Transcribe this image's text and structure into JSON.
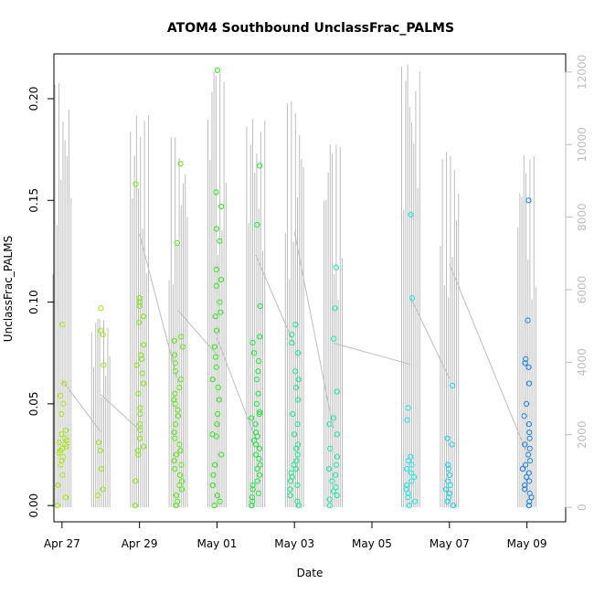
{
  "chart_data": {
    "type": "scatter",
    "title": "ATOM4 Southbound UnclassFrac_PALMS",
    "xlabel": "Date",
    "ylabel": "UnclassFrac_PALMS",
    "x_range_days": [
      "2018-04-26T19:00",
      "2018-05-10T00:00"
    ],
    "x_ticks": [
      {
        "date": "2018-04-27",
        "label": "Apr 27"
      },
      {
        "date": "2018-04-29",
        "label": "Apr 29"
      },
      {
        "date": "2018-05-01",
        "label": "May 01"
      },
      {
        "date": "2018-05-03",
        "label": "May 03"
      },
      {
        "date": "2018-05-05",
        "label": "May 05"
      },
      {
        "date": "2018-05-07",
        "label": "May 07"
      },
      {
        "date": "2018-05-09",
        "label": "May 09"
      }
    ],
    "ylim": [
      -0.008,
      0.222
    ],
    "y_ticks": [
      0.0,
      0.05,
      0.1,
      0.15,
      0.2
    ],
    "y_tick_labels": [
      "0.00",
      "0.05",
      "0.10",
      "0.15",
      "0.20"
    ],
    "y2_axis": {
      "ylim": [
        -400,
        12500
      ],
      "ticks": [
        0,
        2000,
        4000,
        6000,
        8000,
        10000,
        12000
      ],
      "tick_labels": [
        "0",
        "2000",
        "4000",
        "6000",
        "8000",
        "10000",
        "12000"
      ],
      "color": "#bdbdbd"
    },
    "color_scale": "date-based rainbow: yellow-green (Apr 27) to blue (May 09)",
    "altitude_series": {
      "name": "",
      "color": "#bdbdbd",
      "profiles": [
        {
          "date": "2018-04-27T00:00",
          "max": 11700
        },
        {
          "date": "2018-04-28T00:00",
          "max": 5200
        },
        {
          "date": "2018-04-29T00:00",
          "max": 10800
        },
        {
          "date": "2018-04-30T00:00",
          "max": 10200
        },
        {
          "date": "2018-05-01T00:00",
          "max": 12000
        },
        {
          "date": "2018-05-02T00:00",
          "max": 10700
        },
        {
          "date": "2018-05-03T00:00",
          "max": 11200
        },
        {
          "date": "2018-05-04T00:00",
          "max": 10000
        },
        {
          "date": "2018-05-06T00:00",
          "max": 12200
        },
        {
          "date": "2018-05-07T00:00",
          "max": 9800
        },
        {
          "date": "2018-05-09T00:00",
          "max": 9700
        }
      ]
    },
    "series": [
      {
        "date": "2018-04-27",
        "color": "#a6e619",
        "values": [
          0.0,
          0.004,
          0.01,
          0.015,
          0.02,
          0.022,
          0.024,
          0.026,
          0.027,
          0.028,
          0.029,
          0.03,
          0.031,
          0.032,
          0.033,
          0.035,
          0.037,
          0.045,
          0.05,
          0.054,
          0.06,
          0.089
        ]
      },
      {
        "date": "2018-04-28",
        "color": "#99e619",
        "values": [
          0.005,
          0.008,
          0.018,
          0.027,
          0.031,
          0.069,
          0.084,
          0.086,
          0.097
        ]
      },
      {
        "date": "2018-04-29",
        "color": "#7ee619",
        "values": [
          0.0,
          0.012,
          0.025,
          0.027,
          0.029,
          0.033,
          0.037,
          0.04,
          0.045,
          0.048,
          0.055,
          0.06,
          0.065,
          0.069,
          0.072,
          0.074,
          0.079,
          0.09,
          0.093,
          0.098,
          0.1,
          0.102,
          0.158
        ]
      },
      {
        "date": "2018-04-30",
        "color": "#5de619",
        "values": [
          0.0,
          0.002,
          0.005,
          0.008,
          0.01,
          0.012,
          0.015,
          0.018,
          0.02,
          0.022,
          0.025,
          0.027,
          0.03,
          0.033,
          0.036,
          0.04,
          0.044,
          0.047,
          0.05,
          0.052,
          0.055,
          0.058,
          0.062,
          0.066,
          0.07,
          0.074,
          0.078,
          0.081,
          0.083,
          0.129,
          0.168
        ]
      },
      {
        "date": "2018-05-01",
        "color": "#2ee619",
        "values": [
          0.0,
          0.002,
          0.005,
          0.01,
          0.015,
          0.02,
          0.025,
          0.034,
          0.035,
          0.04,
          0.045,
          0.052,
          0.058,
          0.062,
          0.068,
          0.073,
          0.078,
          0.086,
          0.093,
          0.095,
          0.1,
          0.108,
          0.111,
          0.116,
          0.13,
          0.136,
          0.147,
          0.154,
          0.214
        ]
      },
      {
        "date": "2018-05-02",
        "color": "#19e63a",
        "values": [
          0.0,
          0.002,
          0.004,
          0.006,
          0.008,
          0.01,
          0.012,
          0.015,
          0.018,
          0.02,
          0.023,
          0.025,
          0.028,
          0.03,
          0.032,
          0.034,
          0.036,
          0.04,
          0.043,
          0.045,
          0.046,
          0.05,
          0.055,
          0.062,
          0.066,
          0.071,
          0.075,
          0.08,
          0.083,
          0.098,
          0.138,
          0.167
        ]
      },
      {
        "date": "2018-05-03",
        "color": "#19e68a",
        "values": [
          0.0,
          0.002,
          0.005,
          0.008,
          0.01,
          0.012,
          0.014,
          0.016,
          0.018,
          0.02,
          0.022,
          0.025,
          0.028,
          0.03,
          0.035,
          0.04,
          0.045,
          0.052,
          0.058,
          0.062,
          0.066,
          0.075,
          0.08,
          0.084,
          0.089
        ]
      },
      {
        "date": "2018-05-04",
        "color": "#19e6a6",
        "values": [
          0.0,
          0.003,
          0.005,
          0.007,
          0.009,
          0.012,
          0.015,
          0.018,
          0.02,
          0.024,
          0.028,
          0.035,
          0.04,
          0.043,
          0.056,
          0.082,
          0.097,
          0.117
        ]
      },
      {
        "date": "2018-05-06",
        "color": "#19e6e6",
        "values": [
          0.0,
          0.002,
          0.004,
          0.006,
          0.008,
          0.01,
          0.012,
          0.014,
          0.016,
          0.018,
          0.02,
          0.022,
          0.024,
          0.042,
          0.048,
          0.102,
          0.143
        ]
      },
      {
        "date": "2018-05-07",
        "color": "#19d1e6",
        "values": [
          0.0,
          0.002,
          0.004,
          0.006,
          0.008,
          0.01,
          0.012,
          0.015,
          0.018,
          0.02,
          0.03,
          0.033,
          0.059
        ]
      },
      {
        "date": "2018-05-09",
        "color": "#1980e6",
        "values": [
          0.0,
          0.002,
          0.004,
          0.006,
          0.008,
          0.01,
          0.012,
          0.014,
          0.016,
          0.018,
          0.02,
          0.022,
          0.025,
          0.028,
          0.03,
          0.033,
          0.036,
          0.04,
          0.044,
          0.05,
          0.06,
          0.068,
          0.07,
          0.072,
          0.091,
          0.15
        ]
      }
    ],
    "grid": false,
    "legend": "none"
  }
}
